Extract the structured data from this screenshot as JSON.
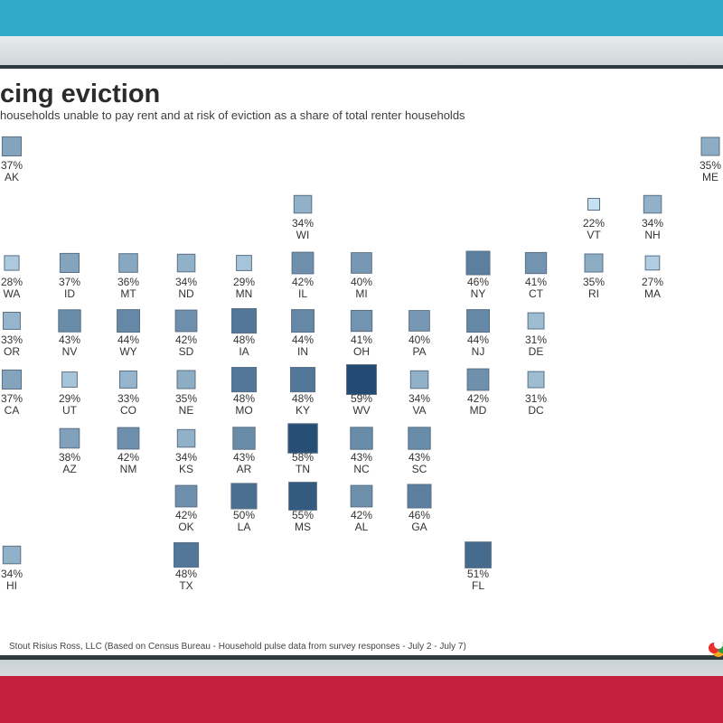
{
  "title": "cing eviction",
  "subtitle": "households unable to pay rent and at risk of eviction as a share of total renter households",
  "source": "Stout Risius Ross, LLC (Based on Census Bureau - Household pulse data from survey responses - July 2 - July 7)",
  "colors": {
    "low": "#c6e2f2",
    "high": "#234a72",
    "border": "#5a7086"
  },
  "chart_data": {
    "type": "tile-map",
    "value_range": [
      22,
      59
    ],
    "states": [
      {
        "abbr": "AK",
        "value": 37,
        "label": "37%",
        "col": 0,
        "row": 0
      },
      {
        "abbr": "ME",
        "value": 35,
        "label": "35%",
        "col": 12,
        "row": 0
      },
      {
        "abbr": "WI",
        "value": 34,
        "label": "34%",
        "col": 5,
        "row": 1
      },
      {
        "abbr": "VT",
        "value": 22,
        "label": "22%",
        "col": 10,
        "row": 1
      },
      {
        "abbr": "NH",
        "value": 34,
        "label": "34%",
        "col": 11,
        "row": 1
      },
      {
        "abbr": "WA",
        "value": 28,
        "label": "28%",
        "col": 0,
        "row": 2
      },
      {
        "abbr": "ID",
        "value": 37,
        "label": "37%",
        "col": 1,
        "row": 2
      },
      {
        "abbr": "MT",
        "value": 36,
        "label": "36%",
        "col": 2,
        "row": 2
      },
      {
        "abbr": "ND",
        "value": 34,
        "label": "34%",
        "col": 3,
        "row": 2
      },
      {
        "abbr": "MN",
        "value": 29,
        "label": "29%",
        "col": 4,
        "row": 2
      },
      {
        "abbr": "IL",
        "value": 42,
        "label": "42%",
        "col": 5,
        "row": 2
      },
      {
        "abbr": "MI",
        "value": 40,
        "label": "40%",
        "col": 6,
        "row": 2
      },
      {
        "abbr": "NY",
        "value": 46,
        "label": "46%",
        "col": 8,
        "row": 2
      },
      {
        "abbr": "CT",
        "value": 41,
        "label": "41%",
        "col": 9,
        "row": 2
      },
      {
        "abbr": "RI",
        "value": 35,
        "label": "35%",
        "col": 10,
        "row": 2
      },
      {
        "abbr": "MA",
        "value": 27,
        "label": "27%",
        "col": 11,
        "row": 2
      },
      {
        "abbr": "OR",
        "value": 33,
        "label": "33%",
        "col": 0,
        "row": 3
      },
      {
        "abbr": "NV",
        "value": 43,
        "label": "43%",
        "col": 1,
        "row": 3
      },
      {
        "abbr": "WY",
        "value": 44,
        "label": "44%",
        "col": 2,
        "row": 3
      },
      {
        "abbr": "SD",
        "value": 42,
        "label": "42%",
        "col": 3,
        "row": 3
      },
      {
        "abbr": "IA",
        "value": 48,
        "label": "48%",
        "col": 4,
        "row": 3
      },
      {
        "abbr": "IN",
        "value": 44,
        "label": "44%",
        "col": 5,
        "row": 3
      },
      {
        "abbr": "OH",
        "value": 41,
        "label": "41%",
        "col": 6,
        "row": 3
      },
      {
        "abbr": "PA",
        "value": 40,
        "label": "40%",
        "col": 7,
        "row": 3
      },
      {
        "abbr": "NJ",
        "value": 44,
        "label": "44%",
        "col": 8,
        "row": 3
      },
      {
        "abbr": "DE",
        "value": 31,
        "label": "31%",
        "col": 9,
        "row": 3
      },
      {
        "abbr": "CA",
        "value": 37,
        "label": "37%",
        "col": 0,
        "row": 4
      },
      {
        "abbr": "UT",
        "value": 29,
        "label": "29%",
        "col": 1,
        "row": 4
      },
      {
        "abbr": "CO",
        "value": 33,
        "label": "33%",
        "col": 2,
        "row": 4
      },
      {
        "abbr": "NE",
        "value": 35,
        "label": "35%",
        "col": 3,
        "row": 4
      },
      {
        "abbr": "MO",
        "value": 48,
        "label": "48%",
        "col": 4,
        "row": 4
      },
      {
        "abbr": "KY",
        "value": 48,
        "label": "48%",
        "col": 5,
        "row": 4
      },
      {
        "abbr": "WV",
        "value": 59,
        "label": "59%",
        "col": 6,
        "row": 4
      },
      {
        "abbr": "VA",
        "value": 34,
        "label": "34%",
        "col": 7,
        "row": 4
      },
      {
        "abbr": "MD",
        "value": 42,
        "label": "42%",
        "col": 8,
        "row": 4
      },
      {
        "abbr": "DC",
        "value": 31,
        "label": "31%",
        "col": 9,
        "row": 4
      },
      {
        "abbr": "AZ",
        "value": 38,
        "label": "38%",
        "col": 1,
        "row": 5
      },
      {
        "abbr": "NM",
        "value": 42,
        "label": "42%",
        "col": 2,
        "row": 5
      },
      {
        "abbr": "KS",
        "value": 34,
        "label": "34%",
        "col": 3,
        "row": 5
      },
      {
        "abbr": "AR",
        "value": 43,
        "label": "43%",
        "col": 4,
        "row": 5
      },
      {
        "abbr": "TN",
        "value": 58,
        "label": "58%",
        "col": 5,
        "row": 5
      },
      {
        "abbr": "NC",
        "value": 43,
        "label": "43%",
        "col": 6,
        "row": 5
      },
      {
        "abbr": "SC",
        "value": 43,
        "label": "43%",
        "col": 7,
        "row": 5
      },
      {
        "abbr": "OK",
        "value": 42,
        "label": "42%",
        "col": 3,
        "row": 6
      },
      {
        "abbr": "LA",
        "value": 50,
        "label": "50%",
        "col": 4,
        "row": 6
      },
      {
        "abbr": "MS",
        "value": 55,
        "label": "55%",
        "col": 5,
        "row": 6
      },
      {
        "abbr": "AL",
        "value": 42,
        "label": "42%",
        "col": 6,
        "row": 6
      },
      {
        "abbr": "GA",
        "value": 46,
        "label": "46%",
        "col": 7,
        "row": 6
      },
      {
        "abbr": "HI",
        "value": 34,
        "label": "34%",
        "col": 0,
        "row": 7
      },
      {
        "abbr": "TX",
        "value": 48,
        "label": "48%",
        "col": 3,
        "row": 7
      },
      {
        "abbr": "FL",
        "value": 51,
        "label": "51%",
        "col": 8,
        "row": 7
      }
    ]
  }
}
